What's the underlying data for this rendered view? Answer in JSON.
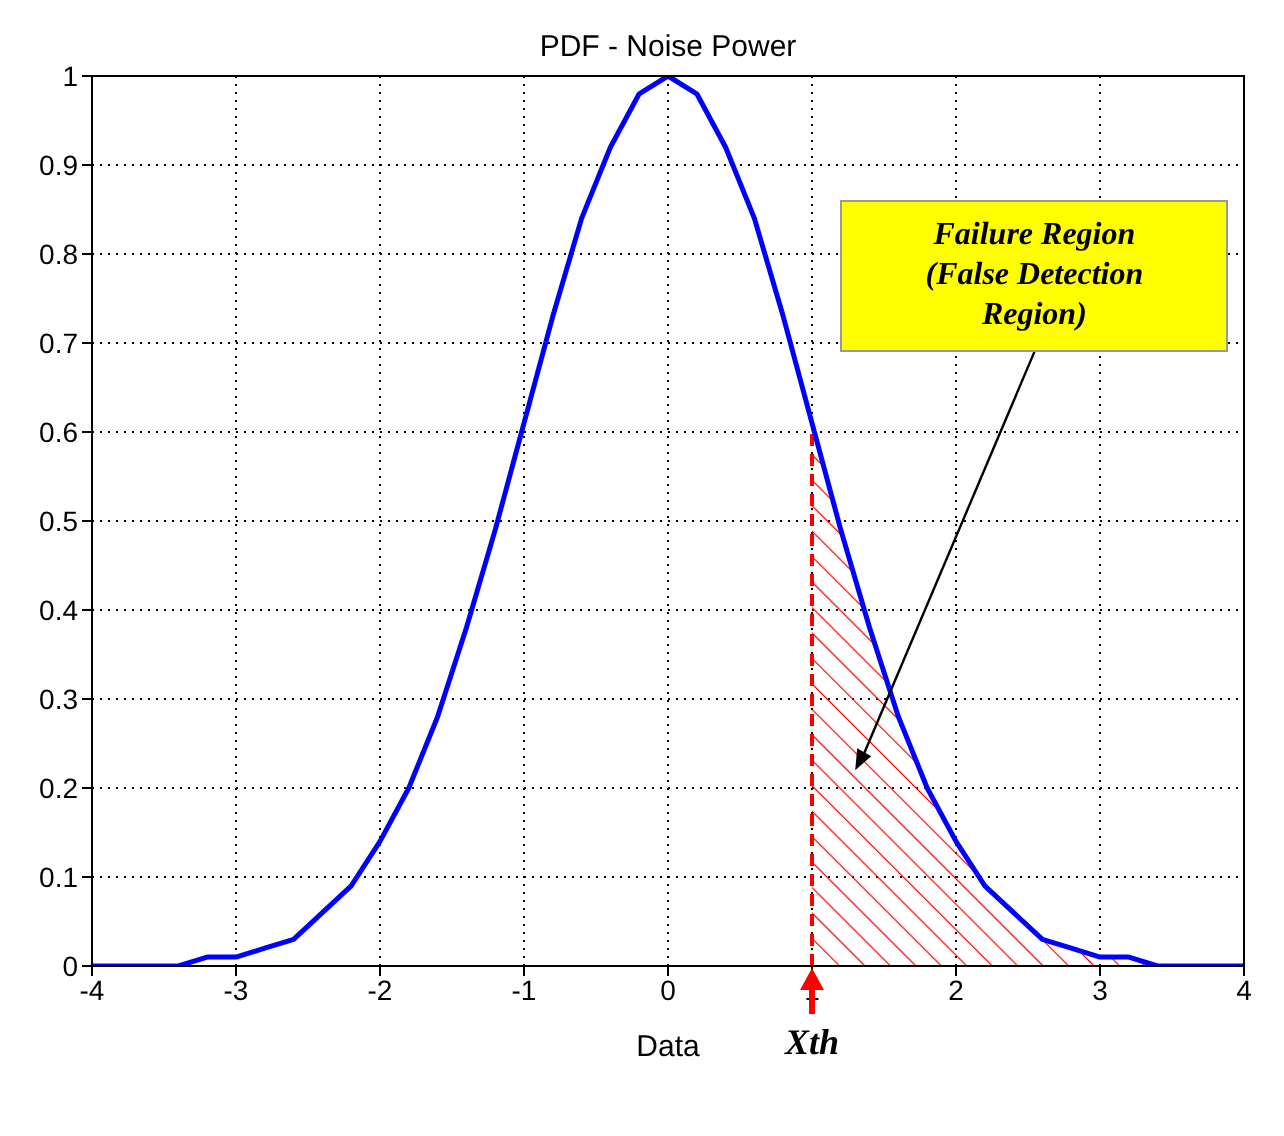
{
  "chart_data": {
    "type": "line",
    "title": "PDF - Noise Power",
    "xlabel": "Data",
    "xlim": [
      -4,
      4
    ],
    "xticks": [
      -4,
      -3,
      -2,
      -1,
      0,
      1,
      2,
      3,
      4
    ],
    "ylim": [
      0,
      1
    ],
    "yticks": [
      0,
      0.1,
      0.2,
      0.3,
      0.4,
      0.5,
      0.6,
      0.7,
      0.8,
      0.9,
      1
    ],
    "grid": true,
    "line_style": "solid",
    "series": [
      {
        "color": "#0000ff",
        "x": [
          -4,
          -3.8,
          -3.6,
          -3.4,
          -3.2,
          -3,
          -2.8,
          -2.6,
          -2.4,
          -2.2,
          -2,
          -1.8,
          -1.6,
          -1.4,
          -1.2,
          -1,
          -0.8,
          -0.6,
          -0.4,
          -0.2,
          0,
          0.2,
          0.4,
          0.6,
          0.8,
          1,
          1.2,
          1.4,
          1.6,
          1.8,
          2,
          2.2,
          2.4,
          2.6,
          2.8,
          3,
          3.2,
          3.4,
          3.6,
          3.8,
          4
        ],
        "values": [
          0,
          0,
          0,
          0,
          0.01,
          0.01,
          0.02,
          0.03,
          0.06,
          0.09,
          0.14,
          0.2,
          0.28,
          0.38,
          0.49,
          0.61,
          0.73,
          0.84,
          0.92,
          0.98,
          1,
          0.98,
          0.92,
          0.84,
          0.73,
          0.61,
          0.49,
          0.38,
          0.28,
          0.2,
          0.14,
          0.09,
          0.06,
          0.03,
          0.02,
          0.01,
          0.01,
          0,
          0,
          0,
          0
        ]
      },
      {
        "type": "area",
        "color": "#ff0000",
        "x": [
          1,
          1.2,
          1.4,
          1.6,
          1.8,
          2,
          2.2,
          2.4,
          2.6,
          2.8,
          3,
          3.2,
          3.4,
          3.6,
          3.8,
          4
        ],
        "values": [
          0.61,
          0.49,
          0.38,
          0.28,
          0.2,
          0.14,
          0.09,
          0.06,
          0.03,
          0.02,
          0.01,
          0.01,
          0,
          0,
          0,
          0
        ]
      }
    ],
    "ref_lines": [
      {
        "axis": "x",
        "value": 1,
        "label": "Xth",
        "color": "#ff0000",
        "line_style": "dashed"
      }
    ],
    "annotations": [
      "Failure Region (False Detection Region)"
    ]
  }
}
